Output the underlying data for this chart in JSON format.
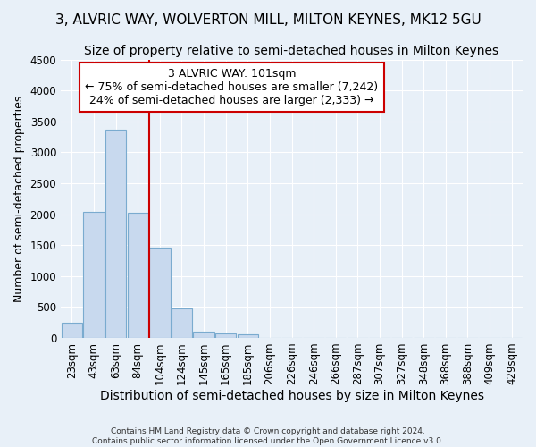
{
  "title": "3, ALVRIC WAY, WOLVERTON MILL, MILTON KEYNES, MK12 5GU",
  "subtitle": "Size of property relative to semi-detached houses in Milton Keynes",
  "xlabel": "Distribution of semi-detached houses by size in Milton Keynes",
  "ylabel": "Number of semi-detached properties",
  "footer_line1": "Contains HM Land Registry data © Crown copyright and database right 2024.",
  "footer_line2": "Contains public sector information licensed under the Open Government Licence v3.0.",
  "bar_labels": [
    "23sqm",
    "43sqm",
    "63sqm",
    "84sqm",
    "104sqm",
    "124sqm",
    "145sqm",
    "165sqm",
    "185sqm",
    "206sqm",
    "226sqm",
    "246sqm",
    "266sqm",
    "287sqm",
    "307sqm",
    "327sqm",
    "348sqm",
    "368sqm",
    "388sqm",
    "409sqm",
    "429sqm"
  ],
  "bar_values": [
    250,
    2030,
    3370,
    2020,
    1460,
    480,
    100,
    65,
    55,
    0,
    0,
    0,
    0,
    0,
    0,
    0,
    0,
    0,
    0,
    0,
    0
  ],
  "bar_color": "#c8d9ee",
  "bar_edge_color": "#7aabcf",
  "vline_x_idx": 4,
  "vline_color": "#cc0000",
  "annotation_line1": "3 ALVRIC WAY: 101sqm",
  "annotation_line2": "← 75% of semi-detached houses are smaller (7,242)",
  "annotation_line3": "24% of semi-detached houses are larger (2,333) →",
  "annotation_box_color": "#ffffff",
  "annotation_box_edge_color": "#cc0000",
  "ylim": [
    0,
    4500
  ],
  "yticks": [
    0,
    500,
    1000,
    1500,
    2000,
    2500,
    3000,
    3500,
    4000,
    4500
  ],
  "background_color": "#e8f0f8",
  "plot_bg_color": "#e8f0f8",
  "grid_color": "#ffffff",
  "title_fontsize": 11,
  "subtitle_fontsize": 10,
  "xlabel_fontsize": 10,
  "ylabel_fontsize": 9,
  "tick_fontsize": 8.5,
  "annotation_fontsize": 9
}
